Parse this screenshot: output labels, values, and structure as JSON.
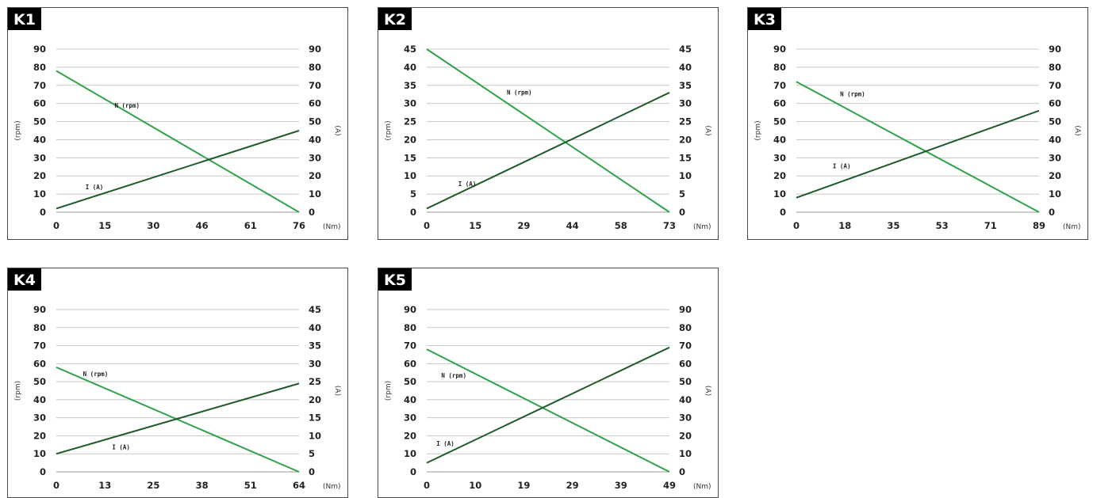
{
  "colors": {
    "n_line": "#2fa24a",
    "i_line": "#1e5a2a",
    "grid": "#c8c8c8",
    "badge": "#000000"
  },
  "chart_data": [
    {
      "type": "line",
      "title": "K1",
      "xlabel": "(Nm)",
      "ylabel_left": "(rpm)",
      "ylabel_right": "(A)",
      "x_ticks": [
        "0",
        "15",
        "30",
        "46",
        "61",
        "76"
      ],
      "xlim": [
        0,
        76
      ],
      "y_left_ticks": [
        "0",
        "10",
        "20",
        "30",
        "40",
        "50",
        "60",
        "70",
        "80",
        "90"
      ],
      "y_left_lim": [
        0,
        90
      ],
      "y_right_ticks": [
        "0",
        "10",
        "20",
        "30",
        "40",
        "50",
        "60",
        "70",
        "80",
        "90"
      ],
      "y_right_lim": [
        0,
        90
      ],
      "grid": true,
      "series": [
        {
          "name": "N (rpm)",
          "axis": "left",
          "x": [
            0,
            76
          ],
          "y": [
            78,
            0
          ]
        },
        {
          "name": "I (A)",
          "axis": "right",
          "x": [
            0,
            76
          ],
          "y": [
            2,
            45
          ]
        }
      ]
    },
    {
      "type": "line",
      "title": "K2",
      "xlabel": "(Nm)",
      "ylabel_left": "(rpm)",
      "ylabel_right": "(A)",
      "x_ticks": [
        "0",
        "15",
        "29",
        "44",
        "58",
        "73"
      ],
      "xlim": [
        0,
        73
      ],
      "y_left_ticks": [
        "0",
        "5",
        "10",
        "15",
        "20",
        "25",
        "30",
        "35",
        "40",
        "45"
      ],
      "y_left_lim": [
        0,
        45
      ],
      "y_right_ticks": [
        "0",
        "5",
        "10",
        "15",
        "20",
        "25",
        "30",
        "35",
        "40",
        "45"
      ],
      "y_right_lim": [
        0,
        45
      ],
      "grid": true,
      "series": [
        {
          "name": "N (rpm)",
          "axis": "left",
          "x": [
            0,
            73
          ],
          "y": [
            45,
            0
          ]
        },
        {
          "name": "I (A)",
          "axis": "right",
          "x": [
            0,
            73
          ],
          "y": [
            1,
            33
          ]
        }
      ]
    },
    {
      "type": "line",
      "title": "K3",
      "xlabel": "(Nm)",
      "ylabel_left": "(rpm)",
      "ylabel_right": "(A)",
      "x_ticks": [
        "0",
        "18",
        "35",
        "53",
        "71",
        "89"
      ],
      "xlim": [
        0,
        89
      ],
      "y_left_ticks": [
        "0",
        "10",
        "20",
        "30",
        "40",
        "50",
        "60",
        "70",
        "80",
        "90"
      ],
      "y_left_lim": [
        0,
        90
      ],
      "y_right_ticks": [
        "0",
        "10",
        "20",
        "30",
        "40",
        "50",
        "60",
        "70",
        "80",
        "90"
      ],
      "y_right_lim": [
        0,
        90
      ],
      "grid": true,
      "series": [
        {
          "name": "N (rpm)",
          "axis": "left",
          "x": [
            0,
            89
          ],
          "y": [
            72,
            0
          ]
        },
        {
          "name": "I (A)",
          "axis": "right",
          "x": [
            0,
            89
          ],
          "y": [
            8,
            56
          ]
        }
      ]
    },
    {
      "type": "line",
      "title": "K4",
      "xlabel": "(Nm)",
      "ylabel_left": "(rpm)",
      "ylabel_right": "(A)",
      "x_ticks": [
        "0",
        "13",
        "25",
        "38",
        "51",
        "64"
      ],
      "xlim": [
        0,
        64
      ],
      "y_left_ticks": [
        "0",
        "10",
        "20",
        "30",
        "40",
        "50",
        "60",
        "70",
        "80",
        "90"
      ],
      "y_left_lim": [
        0,
        90
      ],
      "y_right_ticks": [
        "0",
        "5",
        "10",
        "15",
        "20",
        "25",
        "30",
        "35",
        "40",
        "45"
      ],
      "y_right_lim": [
        0,
        45
      ],
      "grid": true,
      "series": [
        {
          "name": "N (rpm)",
          "axis": "left",
          "x": [
            0,
            64
          ],
          "y": [
            58,
            0
          ]
        },
        {
          "name": "I (A)",
          "axis": "right",
          "x": [
            0,
            64
          ],
          "y": [
            5,
            24.5
          ]
        }
      ]
    },
    {
      "type": "line",
      "title": "K5",
      "xlabel": "(Nm)",
      "ylabel_left": "(rpm)",
      "ylabel_right": "(A)",
      "x_ticks": [
        "0",
        "10",
        "19",
        "29",
        "39",
        "49"
      ],
      "xlim": [
        0,
        49
      ],
      "y_left_ticks": [
        "0",
        "10",
        "20",
        "30",
        "40",
        "50",
        "60",
        "70",
        "80",
        "90"
      ],
      "y_left_lim": [
        0,
        90
      ],
      "y_right_ticks": [
        "0",
        "10",
        "20",
        "30",
        "40",
        "50",
        "60",
        "70",
        "80",
        "90"
      ],
      "y_right_lim": [
        0,
        90
      ],
      "grid": true,
      "series": [
        {
          "name": "N (rpm)",
          "axis": "left",
          "x": [
            0,
            49
          ],
          "y": [
            68,
            0
          ]
        },
        {
          "name": "I (A)",
          "axis": "right",
          "x": [
            0,
            49
          ],
          "y": [
            5,
            69
          ]
        }
      ]
    }
  ]
}
